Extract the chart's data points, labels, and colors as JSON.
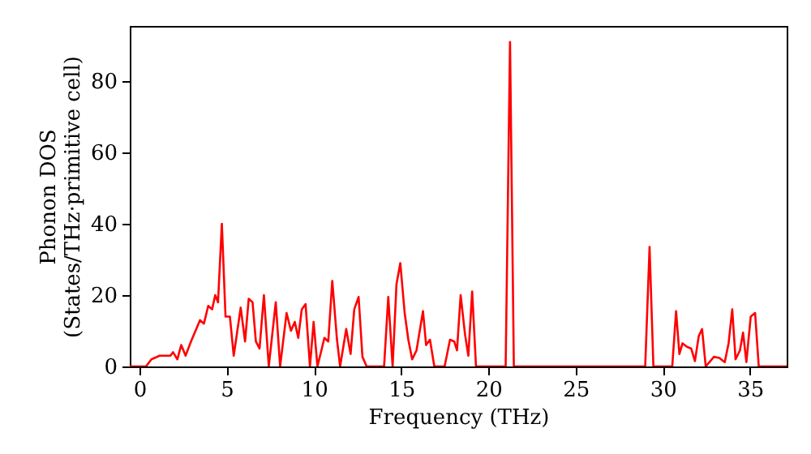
{
  "chart_data": {
    "type": "line",
    "xlabel": "Frequency (THz)",
    "ylabel": "Phonon DOS\n(States/THz·primitive cell)",
    "xlim": [
      -0.56,
      37.1
    ],
    "ylim": [
      0,
      95.5
    ],
    "xticks": [
      0,
      5,
      10,
      15,
      20,
      25,
      30,
      35
    ],
    "yticks": [
      0,
      20,
      40,
      60,
      80
    ],
    "grid": false,
    "line_style": "solid",
    "marker": "none",
    "x": [
      -0.56,
      0.37,
      0.68,
      1.15,
      1.77,
      1.92,
      2.17,
      2.39,
      2.64,
      2.95,
      3.47,
      3.69,
      3.94,
      4.16,
      4.34,
      4.5,
      4.72,
      4.93,
      5.18,
      5.4,
      5.8,
      6.05,
      6.26,
      6.48,
      6.67,
      6.88,
      7.13,
      7.41,
      7.81,
      8.06,
      8.43,
      8.68,
      8.9,
      9.1,
      9.3,
      9.52,
      9.77,
      9.98,
      10.2,
      10.6,
      10.82,
      11.05,
      11.32,
      11.5,
      11.85,
      12.1,
      12.31,
      12.56,
      12.78,
      13.02,
      14.02,
      14.26,
      14.51,
      14.73,
      14.95,
      15.2,
      15.41,
      15.63,
      15.88,
      16.25,
      16.43,
      16.65,
      16.9,
      17.49,
      17.8,
      18.04,
      18.2,
      18.41,
      18.66,
      18.85,
      19.07,
      19.29,
      20.99,
      21.24,
      21.46,
      28.99,
      29.24,
      29.46,
      30.54,
      30.76,
      30.95,
      31.13,
      31.38,
      31.63,
      31.84,
      32.06,
      32.25,
      32.46,
      32.93,
      33.24,
      33.55,
      33.77,
      33.98,
      34.17,
      34.42,
      34.6,
      34.79,
      35.04,
      35.29,
      35.5,
      37.1
    ],
    "series": [
      {
        "color": "#ff0000",
        "values": [
          0,
          0,
          2,
          3,
          3,
          4,
          2,
          6,
          3,
          7,
          13,
          12,
          17,
          16,
          20,
          18,
          40,
          14,
          14,
          3,
          16.5,
          7,
          19,
          18,
          7,
          5,
          20,
          0,
          18,
          0,
          15,
          10,
          12.5,
          8,
          16,
          17.5,
          0,
          12.5,
          0,
          8,
          7,
          24,
          7.5,
          0,
          10.5,
          3.5,
          16,
          19.5,
          2.7,
          0,
          0,
          19.5,
          0,
          23,
          29,
          15,
          7.5,
          2,
          4.5,
          15.5,
          6,
          7.5,
          0,
          0,
          7.5,
          7,
          4.5,
          20,
          9,
          3,
          21,
          0,
          0,
          91,
          0,
          0,
          33.5,
          0,
          0,
          15.5,
          3.5,
          6.5,
          5.5,
          5,
          1.5,
          8.5,
          10.5,
          0,
          2.7,
          2.4,
          1.2,
          6.5,
          16,
          2,
          4.5,
          9.5,
          1.2,
          14,
          15,
          0,
          0
        ]
      }
    ]
  }
}
